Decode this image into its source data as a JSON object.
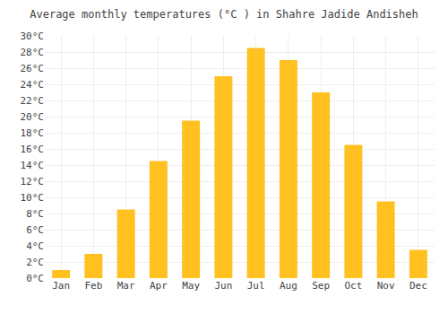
{
  "chart_data": {
    "type": "bar",
    "title": "Average monthly temperatures (°C ) in Shahre Jadide Andisheh",
    "categories": [
      "Jan",
      "Feb",
      "Mar",
      "Apr",
      "May",
      "Jun",
      "Jul",
      "Aug",
      "Sep",
      "Oct",
      "Nov",
      "Dec"
    ],
    "values": [
      1.0,
      3.0,
      8.5,
      14.5,
      19.5,
      25.0,
      28.5,
      27.0,
      23.0,
      16.5,
      9.5,
      3.5
    ],
    "color": "#FFC020",
    "ylim": [
      0,
      30
    ],
    "yticks": [
      {
        "value": 0,
        "label": "0°C"
      },
      {
        "value": 2,
        "label": "2°C"
      },
      {
        "value": 4,
        "label": "4°C"
      },
      {
        "value": 6,
        "label": "6°C"
      },
      {
        "value": 8,
        "label": "8°C"
      },
      {
        "value": 10,
        "label": "10°C"
      },
      {
        "value": 12,
        "label": "12°C"
      },
      {
        "value": 14,
        "label": "14°C"
      },
      {
        "value": 16,
        "label": "16°C"
      },
      {
        "value": 18,
        "label": "18°C"
      },
      {
        "value": 20,
        "label": "20°C"
      },
      {
        "value": 22,
        "label": "22°C"
      },
      {
        "value": 24,
        "label": "24°C"
      },
      {
        "value": 26,
        "label": "26°C"
      },
      {
        "value": 28,
        "label": "28°C"
      },
      {
        "value": 30,
        "label": "30°C"
      }
    ],
    "grid": true
  }
}
